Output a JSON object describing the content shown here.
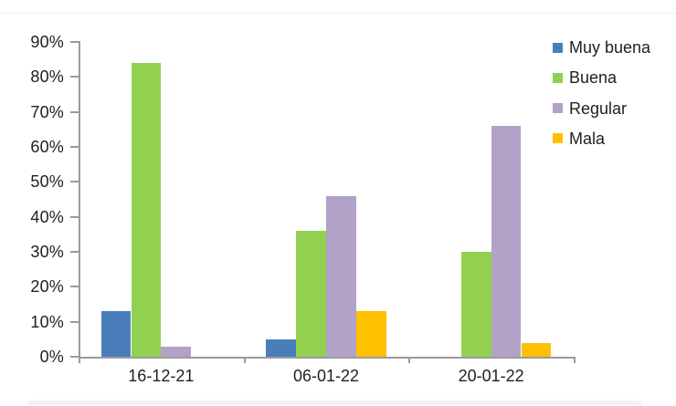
{
  "chart_data": {
    "type": "bar",
    "title": "",
    "categories": [
      "16-12-21",
      "06-01-22",
      "20-01-22"
    ],
    "series": [
      {
        "name": "Muy buena",
        "color": "#4A7EBB",
        "values": [
          13,
          5,
          0
        ]
      },
      {
        "name": "Buena",
        "color": "#92D050",
        "values": [
          84,
          36,
          30
        ]
      },
      {
        "name": "Regular",
        "color": "#B2A2C7",
        "values": [
          3,
          46,
          66
        ]
      },
      {
        "name": "Mala",
        "color": "#FFC000",
        "values": [
          0,
          13,
          4
        ]
      }
    ],
    "y_axis": {
      "min": 0,
      "max": 90,
      "step": 10,
      "tick_labels": [
        "0%",
        "10%",
        "20%",
        "30%",
        "40%",
        "50%",
        "60%",
        "70%",
        "80%",
        "90%"
      ]
    },
    "x_axis": {
      "tick_labels": [
        "16-12-21",
        "06-01-22",
        "20-01-22"
      ]
    },
    "legend": {
      "position": "right-top",
      "entries": [
        "Muy buena",
        "Buena",
        "Regular",
        "Mala"
      ]
    },
    "grid": false,
    "colors": {
      "axis": "#9B9B9B",
      "text": "#1F1F1F",
      "background": "#FFFFFF"
    }
  }
}
